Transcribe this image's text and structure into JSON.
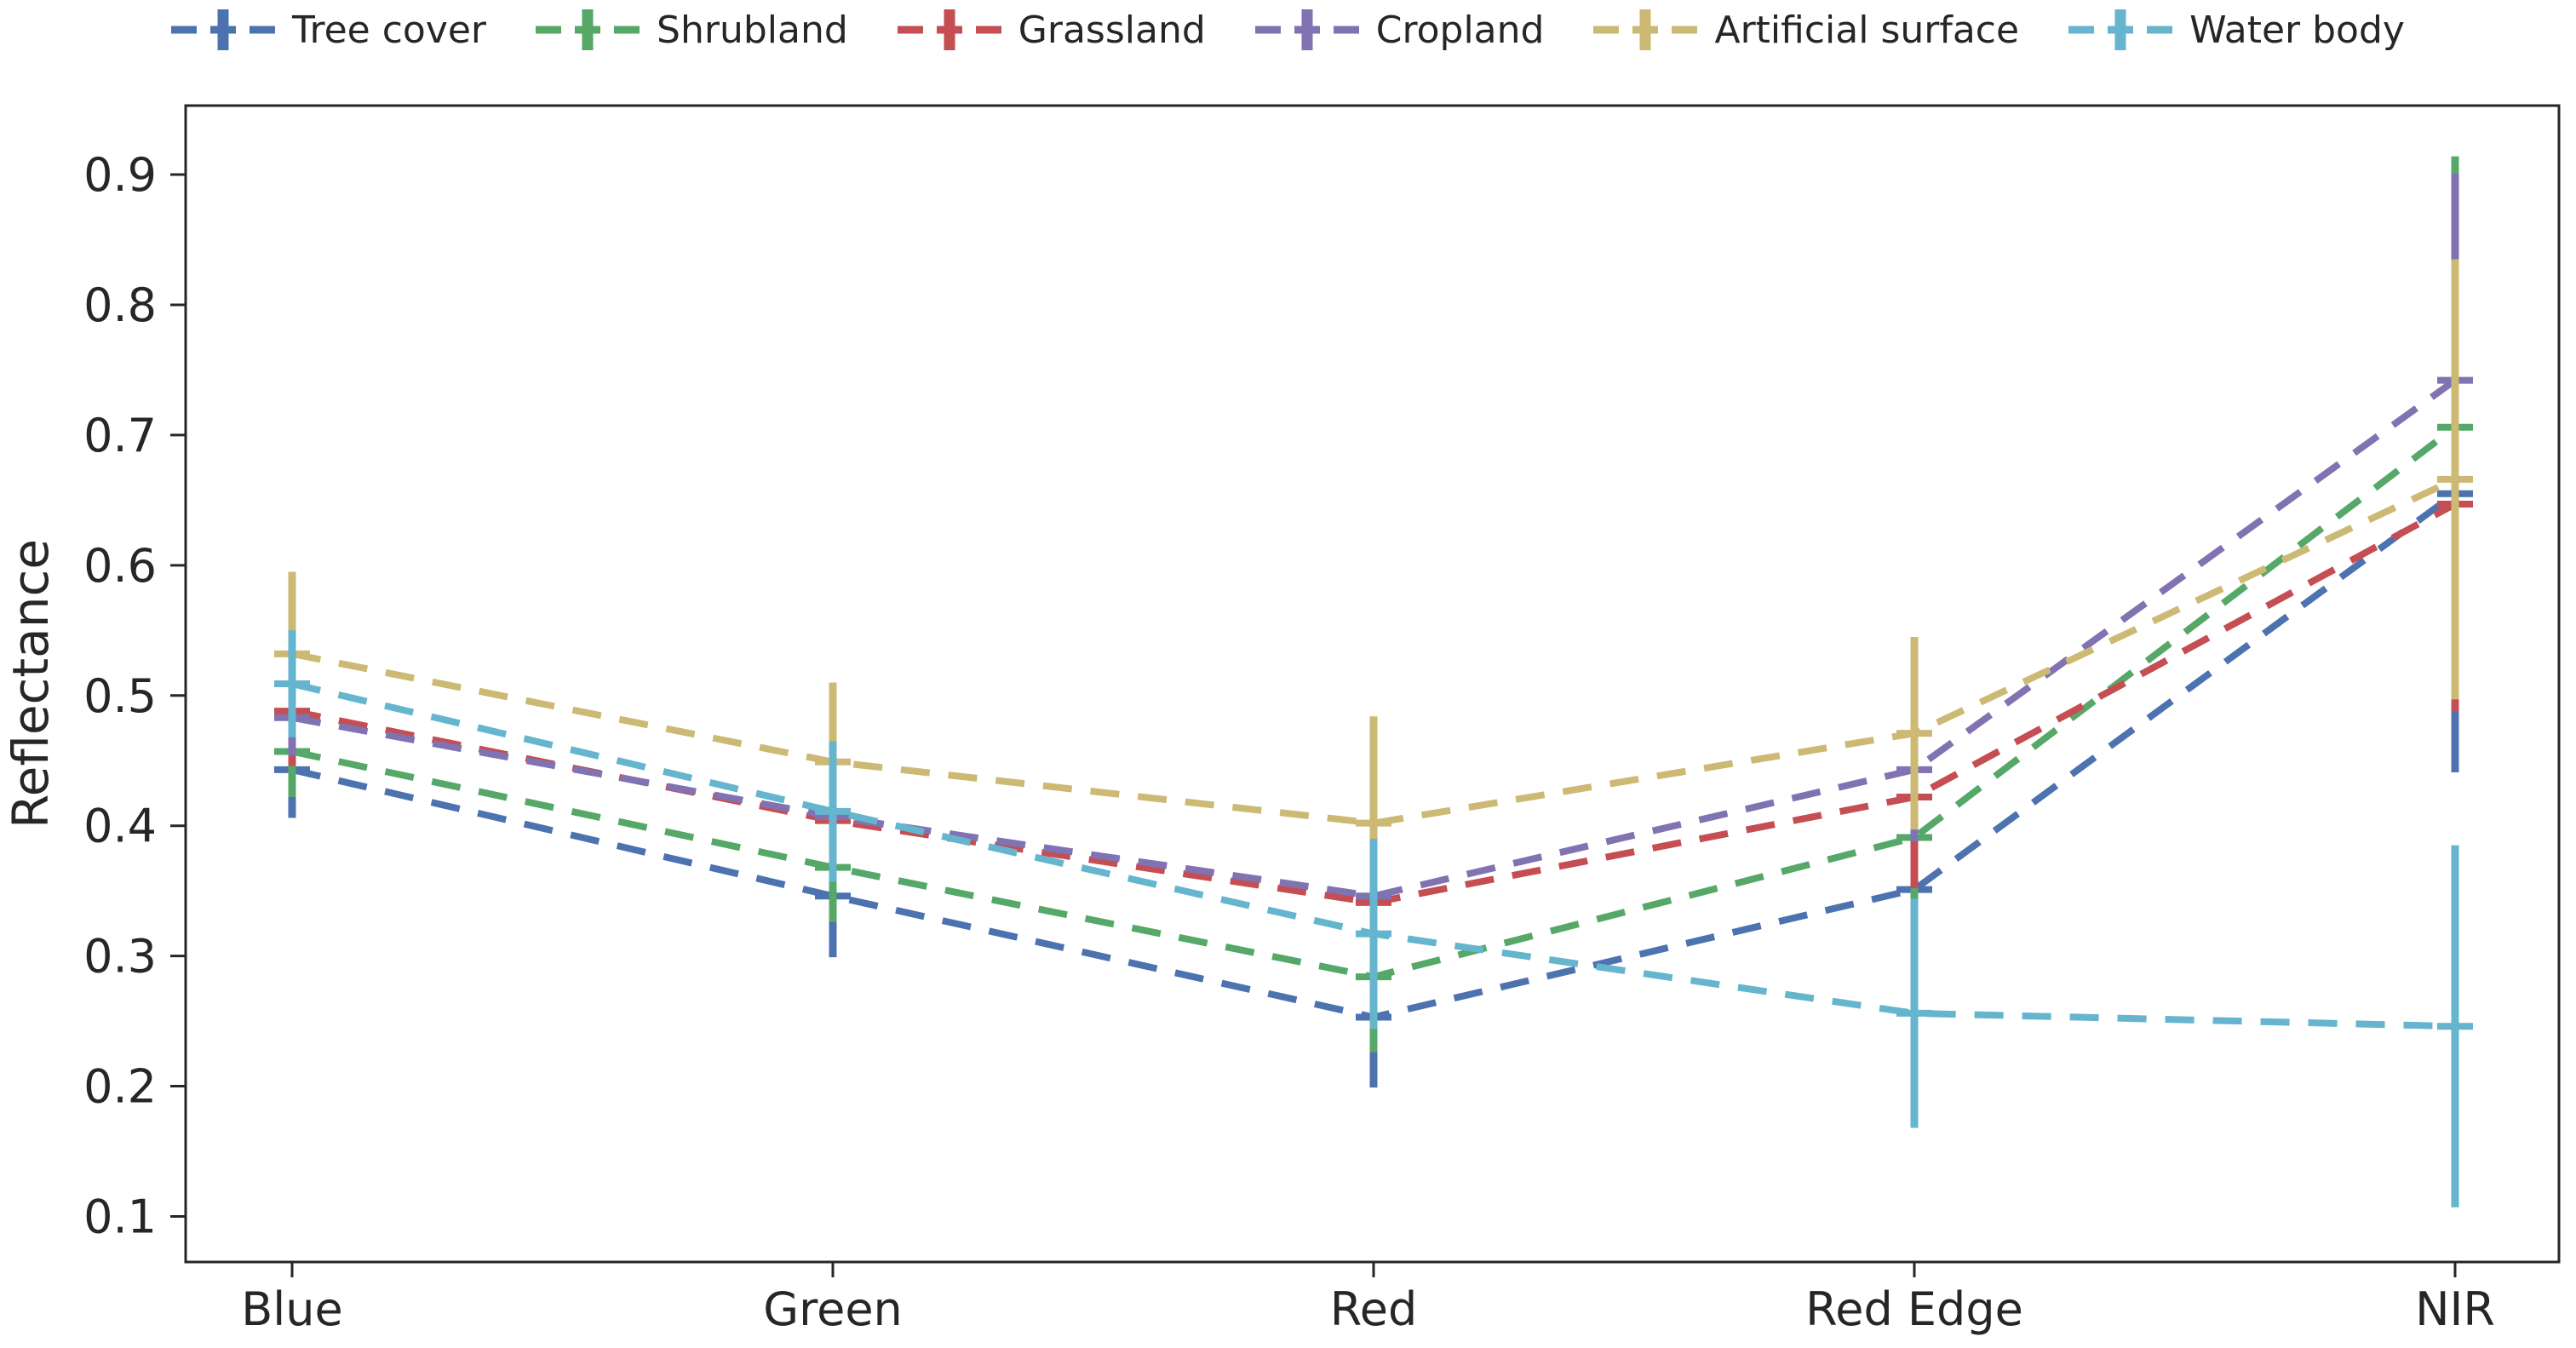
{
  "chart_data": {
    "type": "line",
    "style": "dashed-with-errorbars",
    "title": "",
    "xlabel": "",
    "ylabel": "Reflectance",
    "categories": [
      "Blue",
      "Green",
      "Red",
      "Red Edge",
      "NIR"
    ],
    "yticks": [
      "0.1",
      "0.2",
      "0.3",
      "0.4",
      "0.5",
      "0.6",
      "0.7",
      "0.8",
      "0.9"
    ],
    "ylim": [
      0.065,
      0.953
    ],
    "grid": false,
    "legend_position": "top",
    "axis_color": "#262626",
    "text_color": "#262626",
    "series": [
      {
        "name": "Tree cover",
        "color": "#4C72B0",
        "values": [
          0.443,
          0.346,
          0.253,
          0.351,
          0.655
        ],
        "err": [
          0.037,
          0.047,
          0.054,
          0.055,
          0.214
        ]
      },
      {
        "name": "Shrubland",
        "color": "#55A868",
        "values": [
          0.457,
          0.368,
          0.284,
          0.391,
          0.706
        ],
        "err": [
          0.035,
          0.042,
          0.058,
          0.048,
          0.208
        ]
      },
      {
        "name": "Grassland",
        "color": "#C44E52",
        "values": [
          0.488,
          0.404,
          0.341,
          0.422,
          0.647
        ],
        "err": [
          0.042,
          0.04,
          0.052,
          0.07,
          0.159
        ]
      },
      {
        "name": "Cropland",
        "color": "#8172B2",
        "values": [
          0.483,
          0.407,
          0.346,
          0.443,
          0.742
        ],
        "err": [
          0.029,
          0.036,
          0.046,
          0.055,
          0.159
        ]
      },
      {
        "name": "Artificial surface",
        "color": "#CCB974",
        "values": [
          0.532,
          0.449,
          0.402,
          0.471,
          0.666
        ],
        "err": [
          0.063,
          0.061,
          0.082,
          0.074,
          0.169
        ]
      },
      {
        "name": "Water body",
        "color": "#64B5CD",
        "values": [
          0.509,
          0.411,
          0.317,
          0.256,
          0.246
        ],
        "err": [
          0.041,
          0.054,
          0.073,
          0.088,
          0.139
        ]
      }
    ]
  }
}
